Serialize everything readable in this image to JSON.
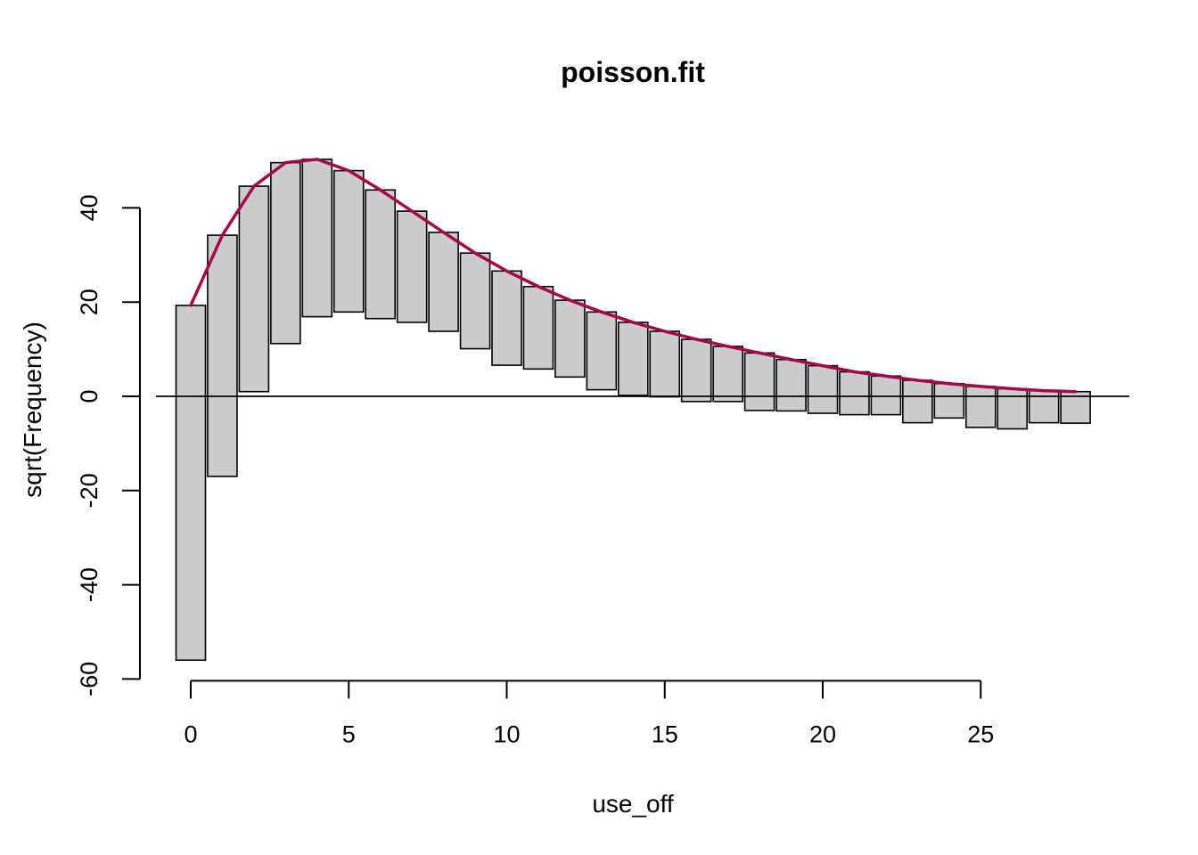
{
  "chart_data": {
    "type": "bar",
    "subtype": "hanging rootogram",
    "title": "poisson.fit",
    "xlabel": "use_off",
    "ylabel": "sqrt(Frequency)",
    "xlim": [
      -0.5,
      29.5
    ],
    "ylim": [
      -60,
      50
    ],
    "x_ticks": [
      0,
      5,
      10,
      15,
      20,
      25
    ],
    "y_ticks": [
      -60,
      -40,
      -20,
      0,
      20,
      40
    ],
    "grid": false,
    "legend": "none",
    "series": [
      {
        "kind": "bars",
        "x": [
          0,
          1,
          2,
          3,
          4,
          5,
          6,
          7,
          8,
          9,
          10,
          11,
          12,
          13,
          14,
          15,
          16,
          17,
          18,
          19,
          20,
          21,
          22,
          23,
          24,
          25,
          26,
          27,
          28
        ],
        "top": [
          19.3,
          34.2,
          44.6,
          49.6,
          50.3,
          47.9,
          43.8,
          39.3,
          34.8,
          30.4,
          26.6,
          23.3,
          20.4,
          17.9,
          15.7,
          13.8,
          12.1,
          10.6,
          9.2,
          7.8,
          6.5,
          5.2,
          4.3,
          3.4,
          2.7,
          2.1,
          1.6,
          1.2,
          1.0
        ],
        "bottom": [
          -56.0,
          -17.0,
          1.0,
          11.2,
          16.9,
          17.9,
          16.5,
          15.7,
          13.8,
          10.1,
          6.6,
          5.8,
          4.1,
          1.4,
          0.2,
          -0.1,
          -1.1,
          -1.1,
          -3.0,
          -3.1,
          -3.6,
          -3.9,
          -3.9,
          -5.6,
          -4.6,
          -6.6,
          -6.9,
          -5.6,
          -5.7
        ],
        "fill": "#cccccc"
      },
      {
        "kind": "line",
        "x": [
          0,
          1,
          2,
          3,
          4,
          5,
          6,
          7,
          8,
          9,
          10,
          11,
          12,
          13,
          14,
          15,
          16,
          17,
          18,
          19,
          20,
          21,
          22,
          23,
          24,
          25,
          26,
          27,
          28
        ],
        "values": [
          19.3,
          34.2,
          44.6,
          49.6,
          50.3,
          47.9,
          43.8,
          39.3,
          34.8,
          30.4,
          26.6,
          23.3,
          20.4,
          17.9,
          15.7,
          13.8,
          12.1,
          10.6,
          9.2,
          7.8,
          6.5,
          5.2,
          4.3,
          3.4,
          2.7,
          2.1,
          1.6,
          1.2,
          1.0
        ],
        "color": "#a3084a"
      }
    ]
  }
}
